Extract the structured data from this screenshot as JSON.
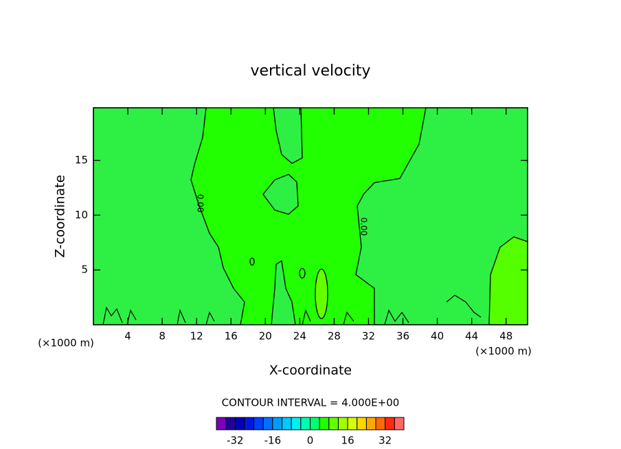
{
  "chart_data": {
    "type": "contour",
    "title": "vertical velocity",
    "x_label": "X-coordinate",
    "y_label": "Z-coordinate",
    "x_unit_labels": [
      "(×1000 m)",
      "(×1000 m)"
    ],
    "xlim": [
      0,
      50.5
    ],
    "xticks": [
      4,
      8,
      12,
      16,
      20,
      24,
      28,
      32,
      36,
      40,
      44,
      48
    ],
    "ylim": [
      0,
      19.8
    ],
    "yticks": [
      5,
      10,
      15
    ],
    "contour_labels": [
      "0.00",
      "0.00"
    ],
    "contour_interval_label": "CONTOUR INTERVAL = 4.000E+00",
    "colorbar": {
      "lim": [
        -40,
        40
      ],
      "ticks": [
        -32,
        -16,
        0,
        16,
        32
      ],
      "levels": [
        -40,
        -36,
        -32,
        -28,
        -24,
        -20,
        -16,
        -12,
        -8,
        -4,
        0,
        4,
        8,
        12,
        16,
        20,
        24,
        28,
        32,
        36
      ],
      "colors": [
        "#7a00b8",
        "#22009a",
        "#0000b4",
        "#0018dc",
        "#0040ff",
        "#0070ff",
        "#009cff",
        "#00c8ff",
        "#00f0f0",
        "#00ffb0",
        "#00ff70",
        "#22ff00",
        "#60ff00",
        "#a0ff00",
        "#d8ff00",
        "#ffd800",
        "#ffa800",
        "#ff6a00",
        "#ff2a10",
        "#ff6868"
      ]
    }
  }
}
